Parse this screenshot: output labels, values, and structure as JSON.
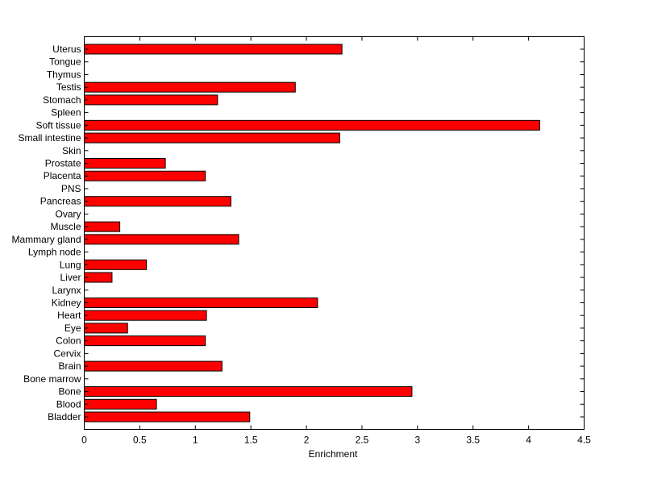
{
  "chart_data": {
    "type": "bar",
    "orientation": "horizontal",
    "title": "",
    "xlabel": "Enrichment",
    "ylabel": "",
    "xlim": [
      0,
      4.5
    ],
    "xticks": [
      "0",
      "0.5",
      "1",
      "1.5",
      "2",
      "2.5",
      "3",
      "3.5",
      "4",
      "4.5"
    ],
    "grid": false,
    "bar_color": "#ff0000",
    "categories": [
      "Uterus",
      "Tongue",
      "Thymus",
      "Testis",
      "Stomach",
      "Spleen",
      "Soft tissue",
      "Small intestine",
      "Skin",
      "Prostate",
      "Placenta",
      "PNS",
      "Pancreas",
      "Ovary",
      "Muscle",
      "Mammary gland",
      "Lymph node",
      "Lung",
      "Liver",
      "Larynx",
      "Kidney",
      "Heart",
      "Eye",
      "Colon",
      "Cervix",
      "Brain",
      "Bone marrow",
      "Bone",
      "Blood",
      "Bladder"
    ],
    "values": [
      2.32,
      0,
      0,
      1.9,
      1.2,
      0,
      4.1,
      2.3,
      0,
      0.73,
      1.09,
      0,
      1.32,
      0,
      0.32,
      1.39,
      0,
      0.56,
      0.25,
      0,
      2.1,
      1.1,
      0.39,
      1.09,
      0,
      1.24,
      0,
      2.95,
      0.65,
      1.49
    ]
  }
}
